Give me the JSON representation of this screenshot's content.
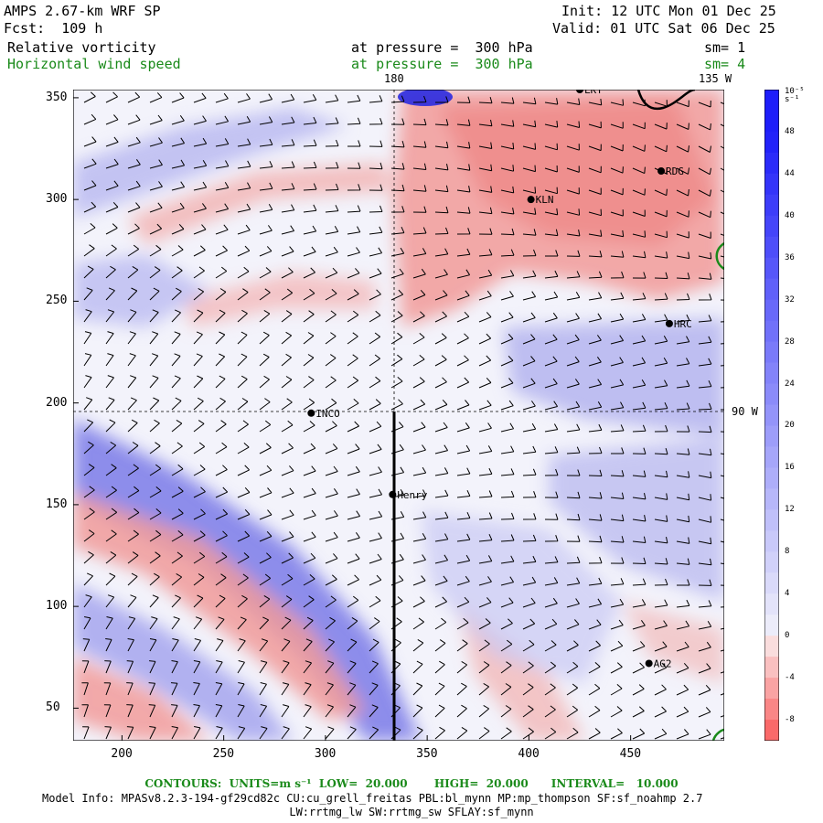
{
  "header": {
    "title": "AMPS 2.67-km WRF SP",
    "fcst": "Fcst:  109 h",
    "init": "Init: 12 UTC Mon 01 Dec 25",
    "valid": "Valid: 01 UTC Sat 06 Dec 25"
  },
  "fields": [
    {
      "name": "Relative vorticity",
      "level": "at pressure =  300 hPa",
      "sm": "sm= 1",
      "color": "#000000"
    },
    {
      "name": "Horizontal wind speed",
      "level": "at pressure =  300 hPa",
      "sm": "sm= 4",
      "color": "#1a8a1a"
    }
  ],
  "map": {
    "meridian_180_label": "180",
    "meridian_135w_label": "135 W",
    "meridian_90w_label": "90 W",
    "x_ticks": [
      "200",
      "250",
      "300",
      "350",
      "400",
      "450"
    ],
    "y_ticks": [
      "350",
      "300",
      "250",
      "200",
      "150",
      "100",
      "50"
    ],
    "x_tick_values": [
      200,
      250,
      300,
      350,
      400,
      450
    ],
    "y_tick_values": [
      350,
      300,
      250,
      200,
      150,
      100,
      50
    ],
    "x_range": [
      176,
      496
    ],
    "y_range": [
      34,
      354
    ],
    "stations": [
      {
        "label": "LKT",
        "x": 425,
        "y": 354
      },
      {
        "label": "RDG",
        "x": 465,
        "y": 314
      },
      {
        "label": "KLN",
        "x": 401,
        "y": 300
      },
      {
        "label": "HRC",
        "x": 469,
        "y": 239
      },
      {
        "label": "INCO",
        "x": 293,
        "y": 195
      },
      {
        "label": "Henry",
        "x": 333,
        "y": 155
      },
      {
        "label": "AG2",
        "x": 459,
        "y": 72
      }
    ],
    "positive_color": "#ef6f70",
    "negative_color": "#4a4af0"
  },
  "colorbar": {
    "unit_label": "10⁻⁵ s⁻¹",
    "labels": [
      "48",
      "44",
      "40",
      "36",
      "32",
      "28",
      "24",
      "20",
      "16",
      "12",
      "8",
      "4",
      "0",
      "-4",
      "-8"
    ],
    "label_values": [
      48,
      44,
      40,
      36,
      32,
      28,
      24,
      20,
      16,
      12,
      8,
      4,
      0,
      -4,
      -8
    ],
    "range": [
      -10,
      52
    ]
  },
  "footer": {
    "contours": "CONTOURS:  UNITS=m s⁻¹  LOW=  20.000       HIGH=  20.000      INTERVAL=   10.000",
    "model_info": "Model Info: MPASv8.2.3-194-gf29cd82c CU:cu_grell_freitas PBL:bl_mynn MP:mp_thompson SF:sf_noahmp 2.7",
    "model_info2": "LW:rrtmg_lw SW:rrtmg_sw SFLAY:sf_mynn"
  }
}
